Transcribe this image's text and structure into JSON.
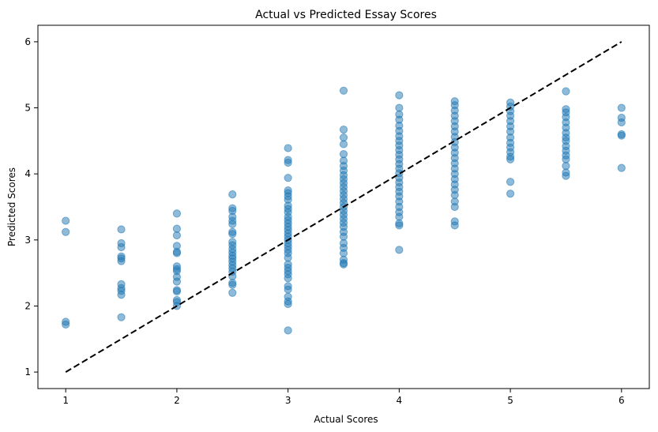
{
  "chart_data": {
    "type": "scatter",
    "title": "Actual vs Predicted Essay Scores",
    "xlabel": "Actual Scores",
    "ylabel": "Predicted Scores",
    "xlim": [
      0.75,
      6.25
    ],
    "ylim": [
      0.75,
      6.25
    ],
    "xticks": [
      "1",
      "2",
      "3",
      "4",
      "5",
      "6"
    ],
    "yticks": [
      "1",
      "2",
      "3",
      "4",
      "5",
      "6"
    ],
    "grid": false,
    "colors": {
      "points": "#1f77b4",
      "reference_line": "#000000"
    },
    "reference_line": {
      "x": [
        1,
        6
      ],
      "y": [
        1,
        6
      ],
      "style": "dashed"
    },
    "series": [
      {
        "points": [
          {
            "x": 1,
            "y": 3.29
          },
          {
            "x": 1,
            "y": 3.12
          },
          {
            "x": 1,
            "y": 1.76
          },
          {
            "x": 1,
            "y": 1.72
          },
          {
            "x": 1.5,
            "y": 3.16
          },
          {
            "x": 1.5,
            "y": 2.95
          },
          {
            "x": 1.5,
            "y": 2.89
          },
          {
            "x": 1.5,
            "y": 2.75
          },
          {
            "x": 1.5,
            "y": 2.72
          },
          {
            "x": 1.5,
            "y": 2.68
          },
          {
            "x": 1.5,
            "y": 2.33
          },
          {
            "x": 1.5,
            "y": 2.27
          },
          {
            "x": 1.5,
            "y": 2.23
          },
          {
            "x": 1.5,
            "y": 2.17
          },
          {
            "x": 1.5,
            "y": 1.83
          },
          {
            "x": 2,
            "y": 3.4
          },
          {
            "x": 2,
            "y": 3.17
          },
          {
            "x": 2,
            "y": 3.07
          },
          {
            "x": 2,
            "y": 2.91
          },
          {
            "x": 2,
            "y": 2.82
          },
          {
            "x": 2,
            "y": 2.8
          },
          {
            "x": 2,
            "y": 2.6
          },
          {
            "x": 2,
            "y": 2.56
          },
          {
            "x": 2,
            "y": 2.53
          },
          {
            "x": 2,
            "y": 2.44
          },
          {
            "x": 2,
            "y": 2.37
          },
          {
            "x": 2,
            "y": 2.24
          },
          {
            "x": 2,
            "y": 2.22
          },
          {
            "x": 2,
            "y": 2.09
          },
          {
            "x": 2,
            "y": 2.06
          },
          {
            "x": 2,
            "y": 2.0
          },
          {
            "x": 2.5,
            "y": 3.69
          },
          {
            "x": 2.5,
            "y": 3.48
          },
          {
            "x": 2.5,
            "y": 3.44
          },
          {
            "x": 2.5,
            "y": 3.35
          },
          {
            "x": 2.5,
            "y": 3.29
          },
          {
            "x": 2.5,
            "y": 3.24
          },
          {
            "x": 2.5,
            "y": 3.12
          },
          {
            "x": 2.5,
            "y": 3.09
          },
          {
            "x": 2.5,
            "y": 2.97
          },
          {
            "x": 2.5,
            "y": 2.92
          },
          {
            "x": 2.5,
            "y": 2.86
          },
          {
            "x": 2.5,
            "y": 2.81
          },
          {
            "x": 2.5,
            "y": 2.76
          },
          {
            "x": 2.5,
            "y": 2.72
          },
          {
            "x": 2.5,
            "y": 2.67
          },
          {
            "x": 2.5,
            "y": 2.62
          },
          {
            "x": 2.5,
            "y": 2.57
          },
          {
            "x": 2.5,
            "y": 2.52
          },
          {
            "x": 2.5,
            "y": 2.45
          },
          {
            "x": 2.5,
            "y": 2.35
          },
          {
            "x": 2.5,
            "y": 2.32
          },
          {
            "x": 2.5,
            "y": 2.2
          },
          {
            "x": 3,
            "y": 4.39
          },
          {
            "x": 3,
            "y": 4.21
          },
          {
            "x": 3,
            "y": 4.17
          },
          {
            "x": 3,
            "y": 3.94
          },
          {
            "x": 3,
            "y": 3.75
          },
          {
            "x": 3,
            "y": 3.71
          },
          {
            "x": 3,
            "y": 3.66
          },
          {
            "x": 3,
            "y": 3.61
          },
          {
            "x": 3,
            "y": 3.52
          },
          {
            "x": 3,
            "y": 3.47
          },
          {
            "x": 3,
            "y": 3.42
          },
          {
            "x": 3,
            "y": 3.35
          },
          {
            "x": 3,
            "y": 3.3
          },
          {
            "x": 3,
            "y": 3.25
          },
          {
            "x": 3,
            "y": 3.2
          },
          {
            "x": 3,
            "y": 3.15
          },
          {
            "x": 3,
            "y": 3.1
          },
          {
            "x": 3,
            "y": 3.05
          },
          {
            "x": 3,
            "y": 3.0
          },
          {
            "x": 3,
            "y": 2.95
          },
          {
            "x": 3,
            "y": 2.9
          },
          {
            "x": 3,
            "y": 2.85
          },
          {
            "x": 3,
            "y": 2.8
          },
          {
            "x": 3,
            "y": 2.73
          },
          {
            "x": 3,
            "y": 2.63
          },
          {
            "x": 3,
            "y": 2.58
          },
          {
            "x": 3,
            "y": 2.53
          },
          {
            "x": 3,
            "y": 2.48
          },
          {
            "x": 3,
            "y": 2.42
          },
          {
            "x": 3,
            "y": 2.3
          },
          {
            "x": 3,
            "y": 2.25
          },
          {
            "x": 3,
            "y": 2.14
          },
          {
            "x": 3,
            "y": 2.07
          },
          {
            "x": 3,
            "y": 2.03
          },
          {
            "x": 3,
            "y": 1.63
          },
          {
            "x": 3.5,
            "y": 5.26
          },
          {
            "x": 3.5,
            "y": 4.67
          },
          {
            "x": 3.5,
            "y": 4.55
          },
          {
            "x": 3.5,
            "y": 4.45
          },
          {
            "x": 3.5,
            "y": 4.3
          },
          {
            "x": 3.5,
            "y": 4.2
          },
          {
            "x": 3.5,
            "y": 4.12
          },
          {
            "x": 3.5,
            "y": 4.05
          },
          {
            "x": 3.5,
            "y": 3.98
          },
          {
            "x": 3.5,
            "y": 3.92
          },
          {
            "x": 3.5,
            "y": 3.86
          },
          {
            "x": 3.5,
            "y": 3.8
          },
          {
            "x": 3.5,
            "y": 3.74
          },
          {
            "x": 3.5,
            "y": 3.68
          },
          {
            "x": 3.5,
            "y": 3.62
          },
          {
            "x": 3.5,
            "y": 3.56
          },
          {
            "x": 3.5,
            "y": 3.5
          },
          {
            "x": 3.5,
            "y": 3.44
          },
          {
            "x": 3.5,
            "y": 3.38
          },
          {
            "x": 3.5,
            "y": 3.32
          },
          {
            "x": 3.5,
            "y": 3.26
          },
          {
            "x": 3.5,
            "y": 3.2
          },
          {
            "x": 3.5,
            "y": 3.12
          },
          {
            "x": 3.5,
            "y": 3.05
          },
          {
            "x": 3.5,
            "y": 2.95
          },
          {
            "x": 3.5,
            "y": 2.88
          },
          {
            "x": 3.5,
            "y": 2.8
          },
          {
            "x": 3.5,
            "y": 2.7
          },
          {
            "x": 3.5,
            "y": 2.65
          },
          {
            "x": 3.5,
            "y": 2.63
          },
          {
            "x": 4,
            "y": 5.19
          },
          {
            "x": 4,
            "y": 5.0
          },
          {
            "x": 4,
            "y": 4.9
          },
          {
            "x": 4,
            "y": 4.82
          },
          {
            "x": 4,
            "y": 4.73
          },
          {
            "x": 4,
            "y": 4.65
          },
          {
            "x": 4,
            "y": 4.57
          },
          {
            "x": 4,
            "y": 4.5
          },
          {
            "x": 4,
            "y": 4.43
          },
          {
            "x": 4,
            "y": 4.36
          },
          {
            "x": 4,
            "y": 4.29
          },
          {
            "x": 4,
            "y": 4.22
          },
          {
            "x": 4,
            "y": 4.15
          },
          {
            "x": 4,
            "y": 4.08
          },
          {
            "x": 4,
            "y": 4.01
          },
          {
            "x": 4,
            "y": 3.94
          },
          {
            "x": 4,
            "y": 3.87
          },
          {
            "x": 4,
            "y": 3.8
          },
          {
            "x": 4,
            "y": 3.73
          },
          {
            "x": 4,
            "y": 3.66
          },
          {
            "x": 4,
            "y": 3.58
          },
          {
            "x": 4,
            "y": 3.5
          },
          {
            "x": 4,
            "y": 3.42
          },
          {
            "x": 4,
            "y": 3.35
          },
          {
            "x": 4,
            "y": 3.25
          },
          {
            "x": 4,
            "y": 3.22
          },
          {
            "x": 4,
            "y": 2.85
          },
          {
            "x": 4.5,
            "y": 5.1
          },
          {
            "x": 4.5,
            "y": 5.04
          },
          {
            "x": 4.5,
            "y": 4.96
          },
          {
            "x": 4.5,
            "y": 4.88
          },
          {
            "x": 4.5,
            "y": 4.8
          },
          {
            "x": 4.5,
            "y": 4.72
          },
          {
            "x": 4.5,
            "y": 4.64
          },
          {
            "x": 4.5,
            "y": 4.56
          },
          {
            "x": 4.5,
            "y": 4.48
          },
          {
            "x": 4.5,
            "y": 4.4
          },
          {
            "x": 4.5,
            "y": 4.32
          },
          {
            "x": 4.5,
            "y": 4.24
          },
          {
            "x": 4.5,
            "y": 4.16
          },
          {
            "x": 4.5,
            "y": 4.08
          },
          {
            "x": 4.5,
            "y": 4.0
          },
          {
            "x": 4.5,
            "y": 3.92
          },
          {
            "x": 4.5,
            "y": 3.84
          },
          {
            "x": 4.5,
            "y": 3.76
          },
          {
            "x": 4.5,
            "y": 3.68
          },
          {
            "x": 4.5,
            "y": 3.58
          },
          {
            "x": 4.5,
            "y": 3.5
          },
          {
            "x": 4.5,
            "y": 3.28
          },
          {
            "x": 4.5,
            "y": 3.22
          },
          {
            "x": 5,
            "y": 5.08
          },
          {
            "x": 5,
            "y": 5.02
          },
          {
            "x": 5,
            "y": 4.95
          },
          {
            "x": 5,
            "y": 4.88
          },
          {
            "x": 5,
            "y": 4.8
          },
          {
            "x": 5,
            "y": 4.72
          },
          {
            "x": 5,
            "y": 4.64
          },
          {
            "x": 5,
            "y": 4.55
          },
          {
            "x": 5,
            "y": 4.47
          },
          {
            "x": 5,
            "y": 4.4
          },
          {
            "x": 5,
            "y": 4.33
          },
          {
            "x": 5,
            "y": 4.26
          },
          {
            "x": 5,
            "y": 4.22
          },
          {
            "x": 5,
            "y": 3.88
          },
          {
            "x": 5,
            "y": 3.7
          },
          {
            "x": 5.5,
            "y": 5.25
          },
          {
            "x": 5.5,
            "y": 4.98
          },
          {
            "x": 5.5,
            "y": 4.93
          },
          {
            "x": 5.5,
            "y": 4.86
          },
          {
            "x": 5.5,
            "y": 4.78
          },
          {
            "x": 5.5,
            "y": 4.7
          },
          {
            "x": 5.5,
            "y": 4.62
          },
          {
            "x": 5.5,
            "y": 4.55
          },
          {
            "x": 5.5,
            "y": 4.5
          },
          {
            "x": 5.5,
            "y": 4.42
          },
          {
            "x": 5.5,
            "y": 4.35
          },
          {
            "x": 5.5,
            "y": 4.28
          },
          {
            "x": 5.5,
            "y": 4.22
          },
          {
            "x": 5.5,
            "y": 4.12
          },
          {
            "x": 5.5,
            "y": 4.02
          },
          {
            "x": 5.5,
            "y": 3.97
          },
          {
            "x": 6,
            "y": 5.0
          },
          {
            "x": 6,
            "y": 4.85
          },
          {
            "x": 6,
            "y": 4.78
          },
          {
            "x": 6,
            "y": 4.6
          },
          {
            "x": 6,
            "y": 4.58
          },
          {
            "x": 6,
            "y": 4.09
          }
        ]
      }
    ]
  }
}
